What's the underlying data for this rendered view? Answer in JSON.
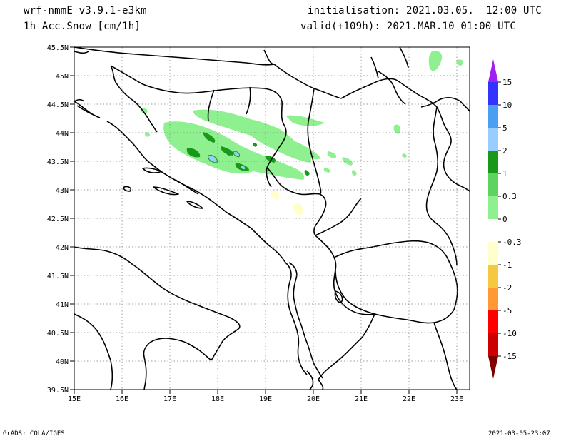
{
  "header": {
    "model": "wrf-nmmE_v3.9.1-e3km",
    "field": "1h Acc.Snow [cm/1h]",
    "init": "initialisation: 2021.03.05.  12:00 UTC",
    "valid": "valid(+109h): 2021.MAR.10 01:00 UTC"
  },
  "axes": {
    "lat_labels": [
      "45.5N",
      "45N",
      "44.5N",
      "44N",
      "43.5N",
      "43N",
      "42.5N",
      "42N",
      "41.5N",
      "41N",
      "40.5N",
      "40N",
      "39.5N"
    ],
    "lon_labels": [
      "15E",
      "16E",
      "17E",
      "18E",
      "19E",
      "20E",
      "21E",
      "22E",
      "23E"
    ],
    "lat_range": [
      39.5,
      45.5
    ],
    "lon_range": [
      15,
      23.3
    ],
    "grid": "dotted"
  },
  "colorbar": {
    "levels": [
      {
        "label": "15",
        "color": "#a020f0"
      },
      {
        "label": "10",
        "color": "#3333ff"
      },
      {
        "label": "5",
        "color": "#4b9ef0"
      },
      {
        "label": "2",
        "color": "#99ccff"
      },
      {
        "label": "1",
        "color": "#199919"
      },
      {
        "label": "0.3",
        "color": "#5fd35f"
      },
      {
        "label": "0",
        "color": "#8ef08e"
      },
      {
        "label": "-0.3",
        "color": "#ffffff"
      },
      {
        "label": "-1",
        "color": "#ffffcc"
      },
      {
        "label": "-2",
        "color": "#f5c842"
      },
      {
        "label": "-5",
        "color": "#ff9933"
      },
      {
        "label": "-10",
        "color": "#ff0000"
      },
      {
        "label": "-15",
        "color": "#cc0000"
      }
    ],
    "bottom_color": "#800000"
  },
  "footer": {
    "left": "GrADS: COLA/IGES",
    "right": "2021-03-05-23:07"
  }
}
